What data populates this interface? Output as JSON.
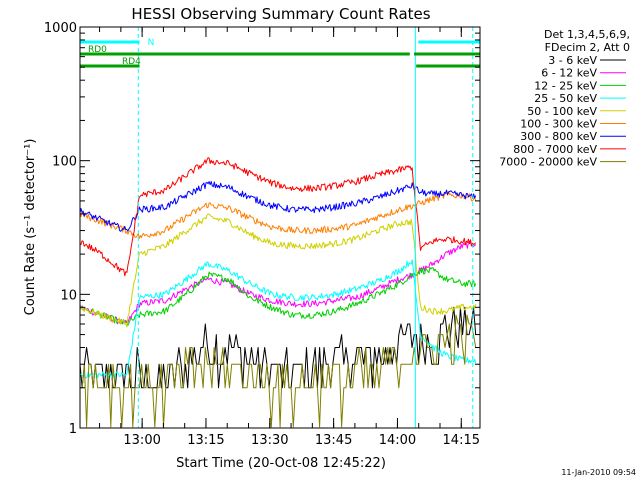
{
  "chart_data": {
    "type": "line",
    "title": "HESSI Observing Summary Count Rates",
    "xlabel": "Start Time (20-Oct-08 12:45:22)",
    "ylabel": "Count Rate (s⁻¹ detector⁻¹)",
    "y_scale": "log",
    "ylim": [
      1,
      1000
    ],
    "xlim_minutes": [
      0,
      94
    ],
    "x_tick_labels": [
      "13:00",
      "13:15",
      "13:30",
      "13:45",
      "14:00",
      "14:15"
    ],
    "x_ticks_minutes": [
      14.6,
      29.6,
      44.6,
      59.6,
      74.6,
      89.6
    ],
    "y_tick_labels": [
      "1",
      "10",
      "100",
      "1000"
    ],
    "y_ticks": [
      1,
      10,
      100,
      1000
    ],
    "legend_header": [
      "Det 1,3,4,5,6,9,",
      "FDecim 2, Att 0"
    ],
    "legend_position": "outside-right",
    "footer_date": "11-Jan-2010 09:54",
    "flags": [
      {
        "label": "N",
        "color": "#00ffff",
        "level": 1.0,
        "segments": [
          [
            0,
            14
          ],
          [
            79.5,
            94
          ]
        ]
      },
      {
        "label": "RD0",
        "color": "#00a000",
        "level": 0.97,
        "segments": [
          [
            0,
            77.5
          ],
          [
            78.5,
            94
          ]
        ]
      },
      {
        "label": "RD4",
        "color": "#00a000",
        "level": 0.94,
        "segments": [
          [
            0,
            14
          ],
          [
            79,
            94
          ]
        ]
      }
    ],
    "night_lines_minutes": [
      {
        "t": 13.7,
        "style": "dashed"
      },
      {
        "t": 78.8,
        "style": "solid"
      },
      {
        "t": 92.3,
        "style": "dashed"
      }
    ],
    "series": [
      {
        "name": "3 - 6 keV",
        "color": "#000000",
        "values": [
          [
            0,
            2.5
          ],
          [
            5,
            2.5
          ],
          [
            11,
            2.5
          ],
          [
            14,
            2.5
          ],
          [
            20,
            2.2
          ],
          [
            30,
            4.2
          ],
          [
            40,
            3.2
          ],
          [
            50,
            2.3
          ],
          [
            60,
            3.0
          ],
          [
            70,
            3.2
          ],
          [
            75,
            4.2
          ],
          [
            78,
            4.8
          ],
          [
            80,
            4.5
          ],
          [
            83,
            4.2
          ],
          [
            86,
            5.5
          ],
          [
            93,
            5.8
          ]
        ]
      },
      {
        "name": "6 - 12 keV",
        "color": "#ff00ff",
        "values": [
          [
            0,
            8
          ],
          [
            5,
            7
          ],
          [
            11,
            6
          ],
          [
            14,
            8.5
          ],
          [
            20,
            9
          ],
          [
            25,
            11
          ],
          [
            30,
            13
          ],
          [
            35,
            12
          ],
          [
            40,
            10
          ],
          [
            45,
            9
          ],
          [
            50,
            8.5
          ],
          [
            55,
            8.5
          ],
          [
            60,
            9
          ],
          [
            65,
            9.5
          ],
          [
            70,
            11
          ],
          [
            75,
            13
          ],
          [
            78,
            14
          ],
          [
            80,
            15
          ],
          [
            83,
            17
          ],
          [
            86,
            20
          ],
          [
            90,
            23
          ],
          [
            93,
            24
          ]
        ]
      },
      {
        "name": "12 - 25 keV",
        "color": "#00d000",
        "values": [
          [
            0,
            8
          ],
          [
            5,
            7
          ],
          [
            11,
            6
          ],
          [
            14,
            7
          ],
          [
            20,
            7.5
          ],
          [
            25,
            10
          ],
          [
            30,
            14
          ],
          [
            35,
            13
          ],
          [
            40,
            9.5
          ],
          [
            45,
            8
          ],
          [
            50,
            7
          ],
          [
            55,
            7
          ],
          [
            60,
            7.5
          ],
          [
            65,
            8.5
          ],
          [
            70,
            10
          ],
          [
            75,
            12
          ],
          [
            78,
            14
          ],
          [
            80,
            15
          ],
          [
            83,
            15
          ],
          [
            86,
            13
          ],
          [
            90,
            12
          ],
          [
            93,
            12
          ]
        ]
      },
      {
        "name": "25 - 50 keV",
        "color": "#00ffff",
        "values": [
          [
            0,
            2.5
          ],
          [
            5,
            2.5
          ],
          [
            11,
            2.5
          ],
          [
            14,
            9.5
          ],
          [
            20,
            10
          ],
          [
            25,
            13
          ],
          [
            30,
            17
          ],
          [
            35,
            15
          ],
          [
            40,
            12
          ],
          [
            45,
            10
          ],
          [
            50,
            9.5
          ],
          [
            55,
            9.5
          ],
          [
            60,
            10
          ],
          [
            65,
            11
          ],
          [
            70,
            12.5
          ],
          [
            75,
            15
          ],
          [
            78,
            18
          ],
          [
            80,
            5
          ],
          [
            83,
            4
          ],
          [
            86,
            3.5
          ],
          [
            90,
            3.2
          ],
          [
            93,
            3.2
          ]
        ]
      },
      {
        "name": "50 - 100 keV",
        "color": "#d0d000",
        "values": [
          [
            0,
            8
          ],
          [
            5,
            7
          ],
          [
            11,
            6
          ],
          [
            14,
            20
          ],
          [
            20,
            23
          ],
          [
            25,
            30
          ],
          [
            30,
            38
          ],
          [
            35,
            35
          ],
          [
            40,
            28
          ],
          [
            45,
            24
          ],
          [
            50,
            23
          ],
          [
            55,
            23
          ],
          [
            60,
            24
          ],
          [
            65,
            26
          ],
          [
            70,
            30
          ],
          [
            75,
            34
          ],
          [
            78,
            35
          ],
          [
            80,
            8
          ],
          [
            83,
            7.5
          ],
          [
            86,
            7.5
          ],
          [
            90,
            8
          ],
          [
            93,
            8
          ]
        ]
      },
      {
        "name": "100 - 300 keV",
        "color": "#ff8000",
        "values": [
          [
            0,
            40
          ],
          [
            5,
            35
          ],
          [
            11,
            30
          ],
          [
            14,
            27
          ],
          [
            20,
            30
          ],
          [
            25,
            38
          ],
          [
            30,
            47
          ],
          [
            35,
            44
          ],
          [
            40,
            37
          ],
          [
            45,
            32
          ],
          [
            50,
            30
          ],
          [
            55,
            30
          ],
          [
            60,
            31
          ],
          [
            65,
            33
          ],
          [
            70,
            38
          ],
          [
            75,
            43
          ],
          [
            78,
            46
          ],
          [
            80,
            48
          ],
          [
            83,
            52
          ],
          [
            86,
            55
          ],
          [
            90,
            55
          ],
          [
            93,
            52
          ]
        ]
      },
      {
        "name": "300 - 800 keV",
        "color": "#0000ff",
        "values": [
          [
            0,
            42
          ],
          [
            5,
            36
          ],
          [
            11,
            30
          ],
          [
            14,
            43
          ],
          [
            20,
            45
          ],
          [
            25,
            55
          ],
          [
            30,
            67
          ],
          [
            35,
            63
          ],
          [
            40,
            53
          ],
          [
            45,
            46
          ],
          [
            50,
            43
          ],
          [
            55,
            43
          ],
          [
            60,
            45
          ],
          [
            65,
            48
          ],
          [
            70,
            53
          ],
          [
            75,
            60
          ],
          [
            78,
            65
          ],
          [
            80,
            58
          ],
          [
            83,
            56
          ],
          [
            86,
            57
          ],
          [
            90,
            55
          ],
          [
            93,
            53
          ]
        ]
      },
      {
        "name": "800 - 7000 keV",
        "color": "#ff0000",
        "values": [
          [
            0,
            25
          ],
          [
            5,
            20
          ],
          [
            11,
            14
          ],
          [
            14,
            55
          ],
          [
            20,
            60
          ],
          [
            25,
            78
          ],
          [
            30,
            100
          ],
          [
            35,
            95
          ],
          [
            40,
            80
          ],
          [
            45,
            68
          ],
          [
            50,
            62
          ],
          [
            55,
            62
          ],
          [
            60,
            65
          ],
          [
            65,
            70
          ],
          [
            70,
            78
          ],
          [
            75,
            85
          ],
          [
            78,
            90
          ],
          [
            80,
            22
          ],
          [
            83,
            25
          ],
          [
            86,
            26
          ],
          [
            90,
            25
          ],
          [
            93,
            24
          ]
        ]
      },
      {
        "name": "7000 - 20000 keV",
        "color": "#808000",
        "values": [
          [
            0,
            2.5
          ],
          [
            5,
            2.2
          ],
          [
            11,
            2.2
          ],
          [
            14,
            2.2
          ],
          [
            20,
            2.0
          ],
          [
            30,
            3.0
          ],
          [
            40,
            2.5
          ],
          [
            50,
            2.0
          ],
          [
            60,
            2.3
          ],
          [
            70,
            2.5
          ],
          [
            75,
            3.3
          ],
          [
            78,
            3.5
          ],
          [
            80,
            3.5
          ],
          [
            83,
            4.0
          ],
          [
            86,
            4.5
          ],
          [
            93,
            4.8
          ]
        ]
      }
    ]
  }
}
